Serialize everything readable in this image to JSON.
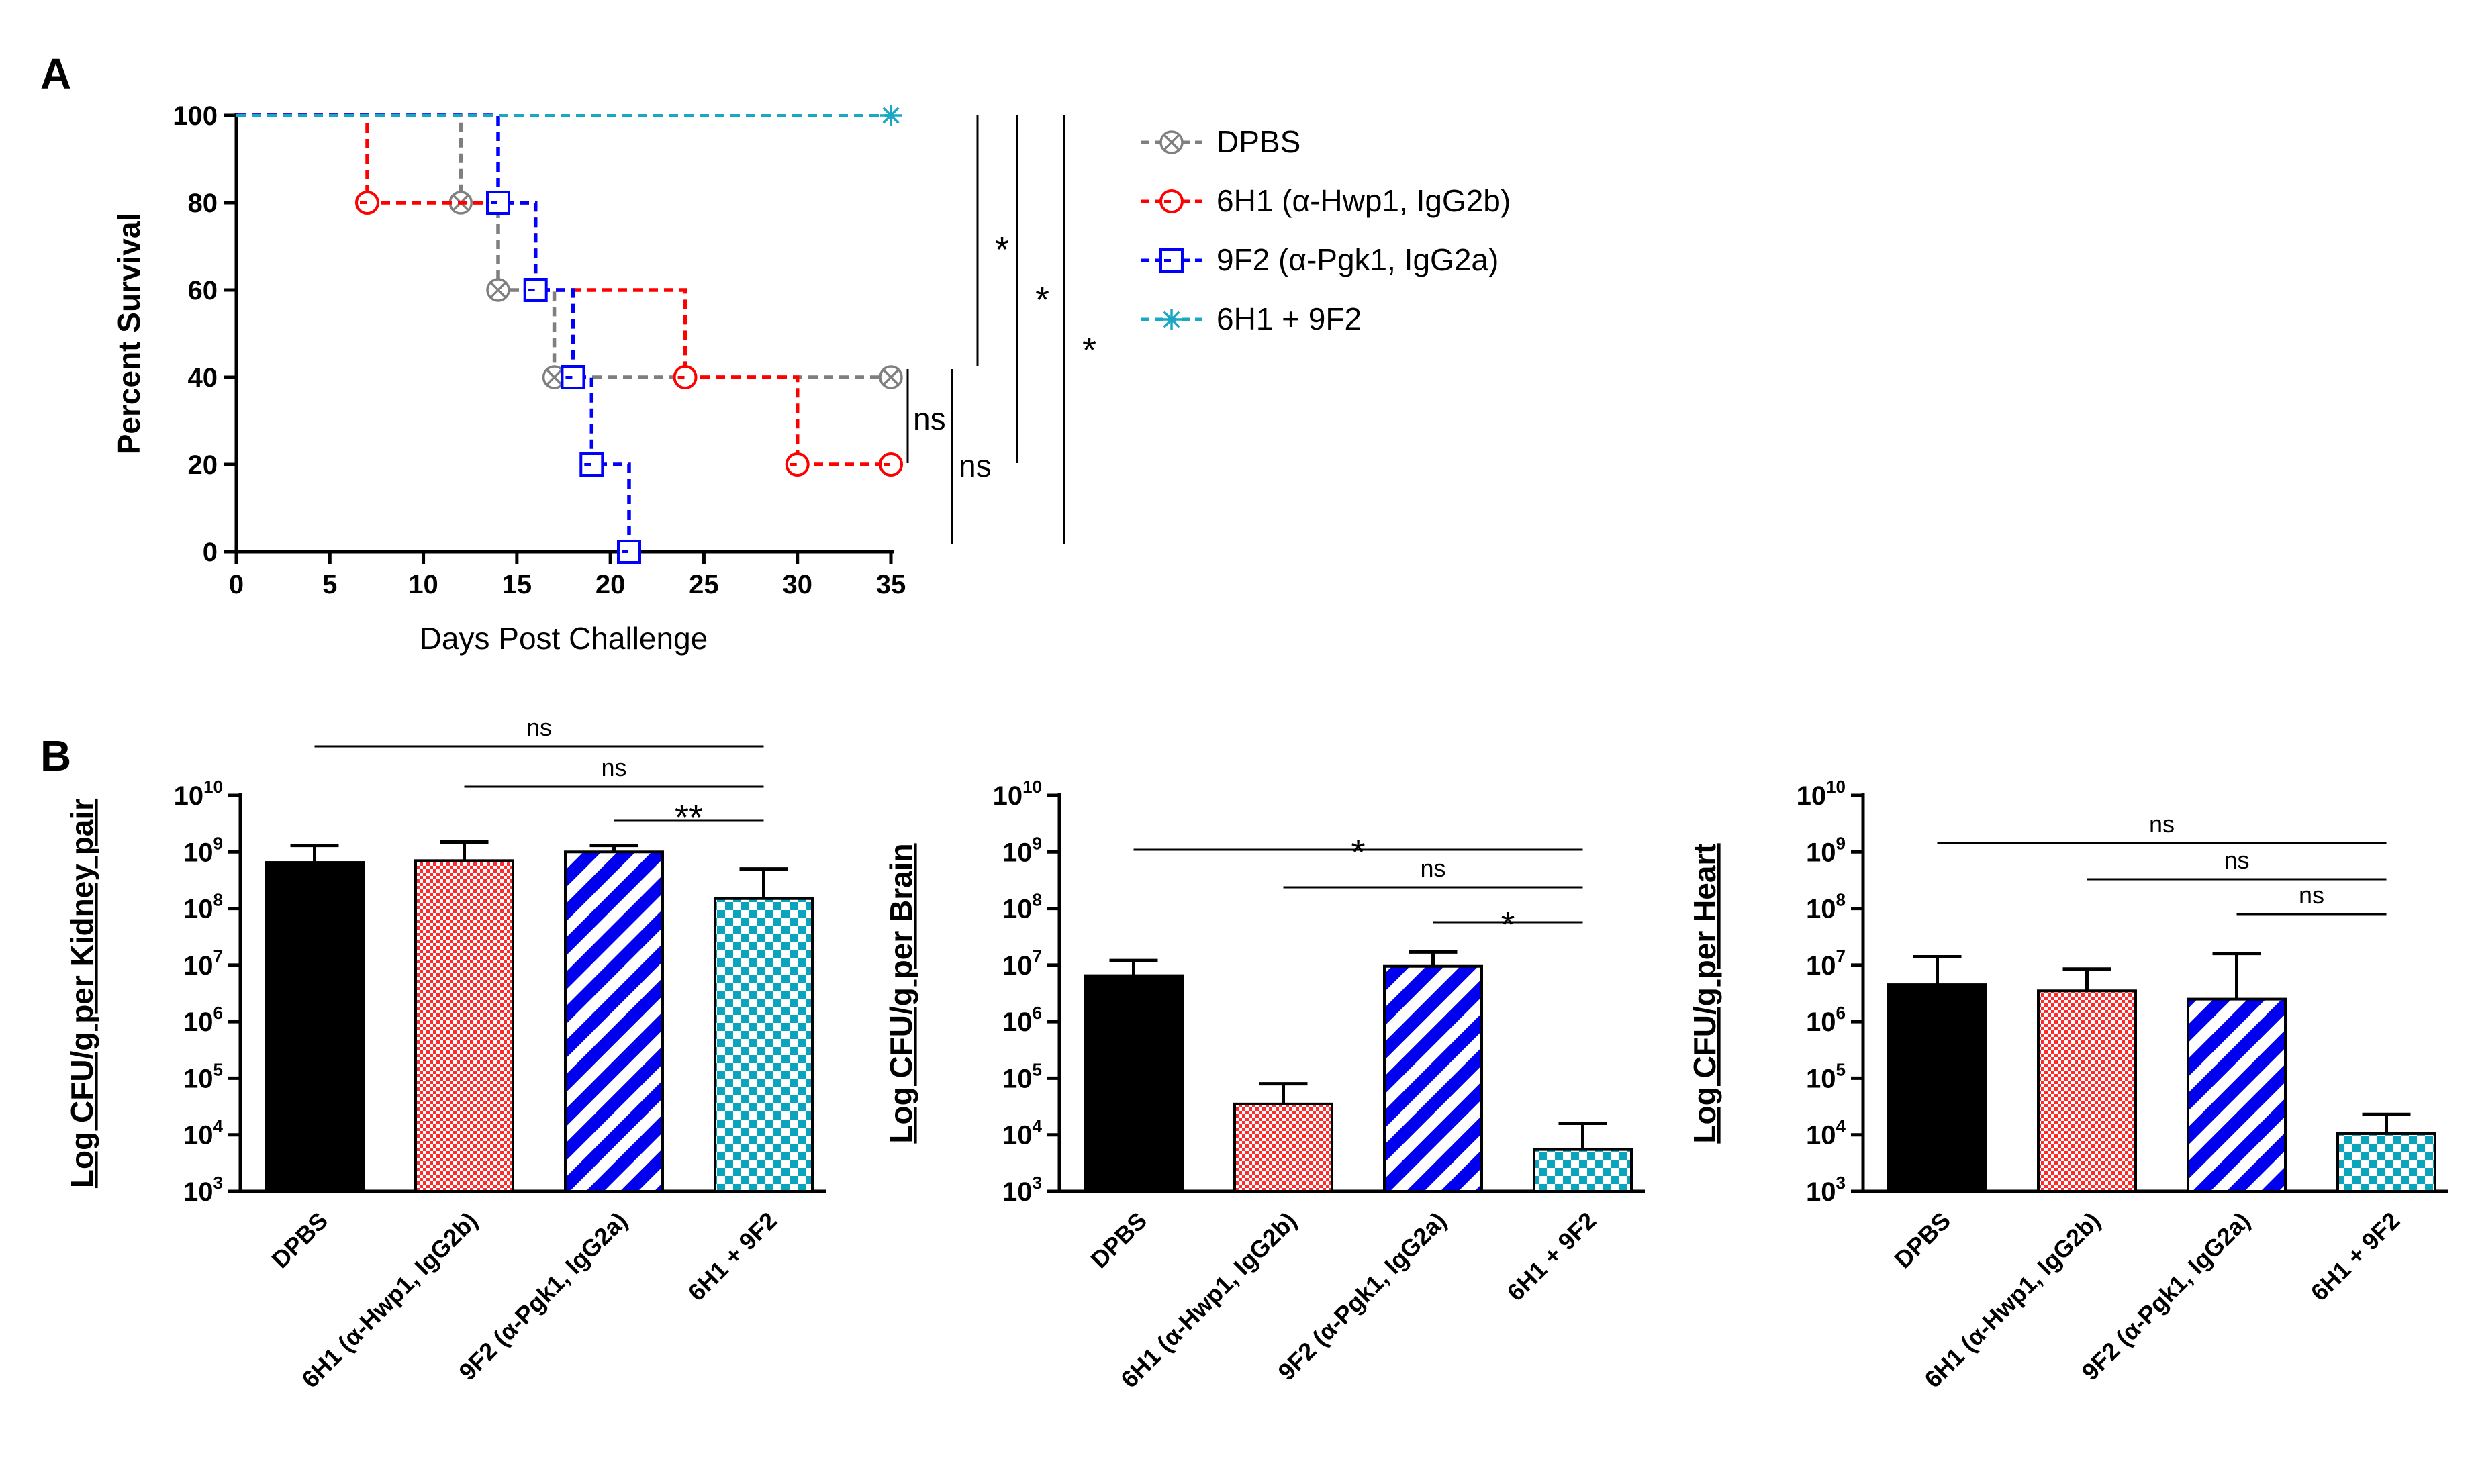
{
  "panel_a_label": "A",
  "panel_b_label": "B",
  "chart_data": [
    {
      "type": "line",
      "step": true,
      "xlabel": "Days Post Challenge",
      "ylabel": "Percent Survival",
      "xlim": [
        0,
        35
      ],
      "ylim": [
        0,
        100
      ],
      "xticks": [
        0,
        5,
        10,
        15,
        20,
        25,
        30,
        35
      ],
      "yticks": [
        0,
        20,
        40,
        60,
        80,
        100
      ],
      "legend_position": "right",
      "series": [
        {
          "name": "DPBS",
          "color": "#7f7f7f",
          "marker": "circle-x",
          "x": [
            0,
            12,
            14,
            17,
            35
          ],
          "y": [
            100,
            80,
            60,
            40,
            40
          ]
        },
        {
          "name": "6H1 (α-Hwp1, IgG2b)",
          "color": "#ff0000",
          "marker": "circle-minus",
          "x": [
            0,
            7,
            16,
            24,
            30,
            35
          ],
          "y": [
            100,
            80,
            60,
            40,
            20,
            20
          ]
        },
        {
          "name": "9F2 (α-Pgk1, IgG2a)",
          "color": "#0000ff",
          "marker": "square-minus",
          "x": [
            0,
            14,
            16,
            18,
            19,
            21
          ],
          "y": [
            100,
            80,
            60,
            40,
            20,
            0
          ]
        },
        {
          "name": "6H1 + 9F2",
          "color": "#1aa7c4",
          "marker": "asterisk",
          "x": [
            0,
            35
          ],
          "y": [
            100,
            100
          ]
        }
      ],
      "significance": [
        "*",
        "*",
        "*",
        "ns",
        "ns"
      ]
    },
    {
      "type": "bar",
      "ylabel": "Log CFU/g per Kidney pair",
      "yscale": "log",
      "ylim": [
        1000,
        10000000000
      ],
      "categories": [
        "DPBS",
        "6H1 (α-Hwp1, IgG2b)",
        "9F2 (α-Pgk1, IgG2a)",
        "6H1 + 9F2"
      ],
      "values": [
        650000000,
        700000000,
        1000000000,
        150000000
      ],
      "error_upper": [
        1300000000,
        1500000000,
        1300000000,
        500000000
      ],
      "significance": [
        "ns",
        "ns",
        "**"
      ]
    },
    {
      "type": "bar",
      "ylabel": "Log CFU/g per Brain",
      "yscale": "log",
      "ylim": [
        1000,
        10000000000
      ],
      "categories": [
        "DPBS",
        "6H1 (α-Hwp1, IgG2b)",
        "9F2 (α-Pgk1, IgG2a)",
        "6H1 + 9F2"
      ],
      "values": [
        6500000,
        35000,
        9500000,
        5500
      ],
      "error_upper": [
        12000000,
        80000,
        17000000,
        16000
      ],
      "significance": [
        "*",
        "ns",
        "*"
      ]
    },
    {
      "type": "bar",
      "ylabel": "Log CFU/g per Heart",
      "yscale": "log",
      "ylim": [
        1000,
        10000000000
      ],
      "categories": [
        "DPBS",
        "6H1 (α-Hwp1, IgG2b)",
        "9F2 (α-Pgk1, IgG2a)",
        "6H1 + 9F2"
      ],
      "values": [
        4500000,
        3500000,
        2500000,
        10500
      ],
      "error_upper": [
        14000000,
        8500000,
        16000000,
        23000
      ],
      "significance": [
        "ns",
        "ns",
        "ns"
      ]
    }
  ]
}
